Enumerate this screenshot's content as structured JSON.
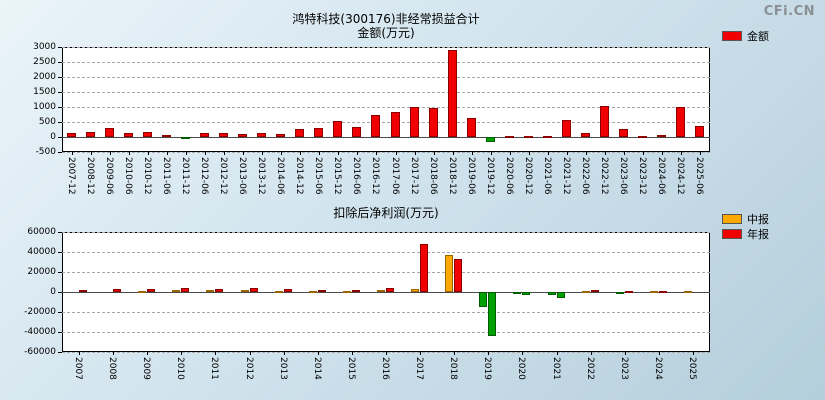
{
  "logo": "CFi.CN",
  "top_chart": {
    "title_line1": "鸿特科技(300176)非经常损益合计",
    "title_line2": "金额(万元)",
    "legend": {
      "label": "金额",
      "color": "#f00000"
    }
  },
  "bottom_chart": {
    "title": "扣除后净利润(万元)",
    "legend": [
      {
        "label": "中报",
        "color": "#ffa800"
      },
      {
        "label": "年报",
        "color": "#f00000"
      }
    ]
  },
  "chart_data": [
    {
      "type": "bar",
      "title": "鸿特科技(300176)非经常损益合计 金额(万元)",
      "xlabel": "",
      "ylabel": "金额(万元)",
      "legend_entries": [
        "金额"
      ],
      "legend_position": "top-right",
      "grid": true,
      "ylim": [
        -500,
        3000
      ],
      "yticks": [
        3000,
        2500,
        2000,
        1500,
        1000,
        500,
        0,
        -500
      ],
      "bar_color": "#f00000",
      "negative_color": "#00a000",
      "categories": [
        "2007-12",
        "2008-12",
        "2009-06",
        "2010-06",
        "2010-12",
        "2011-06",
        "2011-12",
        "2012-06",
        "2012-12",
        "2013-06",
        "2013-12",
        "2014-06",
        "2014-12",
        "2015-06",
        "2015-12",
        "2016-06",
        "2016-12",
        "2017-06",
        "2017-12",
        "2018-06",
        "2018-12",
        "2019-06",
        "2019-12",
        "2020-06",
        "2020-12",
        "2021-06",
        "2021-12",
        "2022-06",
        "2022-12",
        "2023-06",
        "2023-12",
        "2024-06",
        "2024-12",
        "2025-06"
      ],
      "values": [
        150,
        160,
        290,
        130,
        160,
        60,
        -40,
        140,
        150,
        110,
        140,
        90,
        280,
        300,
        520,
        330,
        720,
        850,
        1000,
        980,
        2900,
        620,
        -160,
        20,
        40,
        30,
        560,
        140,
        1050,
        260,
        40,
        60,
        1000,
        380
      ]
    },
    {
      "type": "bar",
      "title": "扣除后净利润(万元)",
      "xlabel": "",
      "ylabel": "扣除后净利润(万元)",
      "legend_entries": [
        "中报",
        "年报"
      ],
      "legend_position": "top-right",
      "grid": true,
      "ylim": [
        -60000,
        60000
      ],
      "yticks": [
        60000,
        40000,
        20000,
        0,
        -20000,
        -40000,
        -60000
      ],
      "negative_color": "#00a000",
      "categories": [
        "2007",
        "2008",
        "2009",
        "2010",
        "2011",
        "2012",
        "2013",
        "2014",
        "2015",
        "2016",
        "2017",
        "2018",
        "2019",
        "2020",
        "2021",
        "2022",
        "2023",
        "2024",
        "2025"
      ],
      "series": [
        {
          "name": "中报",
          "color": "#ffa800",
          "values": [
            null,
            null,
            1000,
            2000,
            1800,
            2200,
            1500,
            1000,
            1200,
            2000,
            3500,
            37000,
            -15000,
            -1500,
            -3000,
            1000,
            -1000,
            600,
            1200
          ]
        },
        {
          "name": "年报",
          "color": "#f00000",
          "values": [
            2500,
            2600,
            3200,
            4500,
            3500,
            4500,
            3000,
            2200,
            2500,
            4500,
            48000,
            33000,
            -44000,
            -2500,
            -5500,
            2500,
            1200,
            1500,
            null
          ]
        }
      ]
    }
  ]
}
